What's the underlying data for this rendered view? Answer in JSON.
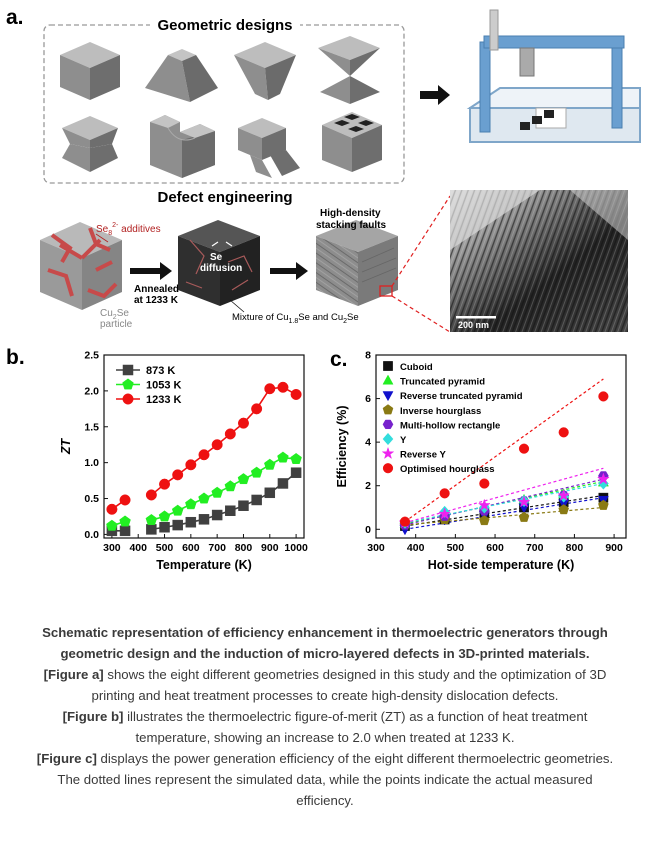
{
  "panel_a": {
    "label": "a.",
    "geometric_designs_title": "Geometric designs",
    "defect_title": "Defect engineering",
    "additives_label_main": "Se",
    "additives_label_sub": "8",
    "additives_label_sup": "2-",
    "additives_label_tail": " additives",
    "particle_label_main": "Cu",
    "particle_label_sub": "2",
    "particle_label_tail": "Se",
    "particle_label_line2": "particle",
    "annealed_line1": "Annealed",
    "annealed_line2": "at 1233 K",
    "se_diffusion_line1": "Se",
    "se_diffusion_line2": "diffusion",
    "stacking_line1": "High-density",
    "stacking_line2": "stacking faults",
    "mixture_main": "Mixture of Cu",
    "mixture_sub": "1.8",
    "mixture_tail": "Se and Cu",
    "mixture_sub2": "2",
    "mixture_tail2": "Se",
    "scale_bar": "200 nm"
  },
  "panel_b_label": "b.",
  "panel_c_label": "c.",
  "chart_data": [
    {
      "type": "line",
      "xlabel": "Temperature (K)",
      "ylabel": "ZT",
      "xlim": [
        270,
        1030
      ],
      "ylim": [
        -0.05,
        2.5
      ],
      "xticks": [
        300,
        400,
        500,
        600,
        700,
        800,
        900,
        1000
      ],
      "yticks": [
        0.0,
        0.5,
        1.0,
        1.5,
        2.0,
        2.5
      ],
      "legend_position": "top-left",
      "series": [
        {
          "name": "873 K",
          "color": "#404040",
          "marker": "square",
          "x": [
            300,
            350,
            450,
            500,
            550,
            600,
            650,
            700,
            750,
            800,
            850,
            900,
            950,
            1000
          ],
          "y": [
            0.05,
            0.05,
            0.07,
            0.1,
            0.13,
            0.17,
            0.21,
            0.27,
            0.33,
            0.4,
            0.48,
            0.58,
            0.71,
            0.86
          ]
        },
        {
          "name": "1053 K",
          "color": "#22ee22",
          "marker": "pentagon",
          "x": [
            300,
            350,
            450,
            500,
            550,
            600,
            650,
            700,
            750,
            800,
            850,
            900,
            950,
            1000
          ],
          "y": [
            0.12,
            0.18,
            0.2,
            0.25,
            0.33,
            0.42,
            0.5,
            0.58,
            0.67,
            0.77,
            0.86,
            0.97,
            1.07,
            1.05
          ]
        },
        {
          "name": "1233 K",
          "color": "#ee1111",
          "marker": "circle",
          "x": [
            300,
            350,
            450,
            500,
            550,
            600,
            650,
            700,
            750,
            800,
            850,
            900,
            950,
            1000
          ],
          "y": [
            0.35,
            0.48,
            0.55,
            0.7,
            0.83,
            0.97,
            1.11,
            1.25,
            1.4,
            1.55,
            1.75,
            2.03,
            2.05,
            1.95
          ]
        }
      ]
    },
    {
      "type": "scatter",
      "xlabel": "Hot-side temperature (K)",
      "ylabel": "Efficiency (%)",
      "xlim": [
        300,
        930
      ],
      "ylim": [
        -0.4,
        8
      ],
      "xticks": [
        300,
        400,
        500,
        600,
        700,
        800,
        900
      ],
      "yticks": [
        0,
        2,
        4,
        6,
        8
      ],
      "legend_position": "top-left",
      "x": [
        373,
        473,
        573,
        673,
        773,
        873
      ],
      "series": [
        {
          "name": "Cuboid",
          "color": "#111111",
          "marker": "square",
          "y": [
            0.15,
            0.45,
            0.75,
            1.0,
            1.25,
            1.45
          ],
          "sim_end": 1.55
        },
        {
          "name": "Truncated pyramid",
          "color": "#22ee22",
          "marker": "triangle-up",
          "y": [
            0.25,
            0.7,
            1.0,
            1.35,
            1.6,
            2.15
          ],
          "sim_end": 2.2
        },
        {
          "name": "Reverse truncated pyramid",
          "color": "#1111cc",
          "marker": "triangle-down",
          "y": [
            0.0,
            0.45,
            0.65,
            1.0,
            1.2,
            1.35
          ],
          "sim_end": 1.45
        },
        {
          "name": "Inverse hourglass",
          "color": "#8a7a14",
          "marker": "pentagon",
          "y": [
            0.2,
            0.45,
            0.4,
            0.55,
            0.9,
            1.1
          ],
          "sim_end": 1.0
        },
        {
          "name": "Multi-hollow rectangle",
          "color": "#7722cc",
          "marker": "hexagon",
          "y": [
            0.2,
            0.6,
            0.85,
            1.3,
            1.55,
            2.45
          ],
          "sim_end": 2.3
        },
        {
          "name": "Y",
          "color": "#33dddd",
          "marker": "diamond",
          "y": [
            0.3,
            0.8,
            1.0,
            1.3,
            1.5,
            2.1
          ],
          "sim_end": 2.1
        },
        {
          "name": "Reverse Y",
          "color": "#ee22ee",
          "marker": "star",
          "y": [
            0.3,
            0.7,
            1.1,
            1.25,
            1.55,
            2.3
          ],
          "sim_end": 2.8
        },
        {
          "name": "Optimised hourglass",
          "color": "#ee1111",
          "marker": "circle",
          "y": [
            0.35,
            1.65,
            2.1,
            3.7,
            4.45,
            6.1
          ],
          "sim_end": 6.9
        }
      ]
    }
  ],
  "caption": {
    "lead_1": "Schematic representation of efficiency enhancement in thermoelectric generators through",
    "lead_2": "geometric design and the induction of micro-layered defects in 3D-printed materials.",
    "a_tag": "[Figure a]",
    "a_1": " shows the eight different geometries designed in this study and the optimization of 3D",
    "a_2": "printing and heat treatment processes to create high-density dislocation defects.",
    "b_tag": "[Figure b]",
    "b_1": " illustrates the thermoelectric figure-of-merit (ZT) as a function of heat treatment",
    "b_2": "temperature, showing an increase to 2.0 when treated at 1233 K.",
    "c_tag": "[Figure c]",
    "c_1": " displays the power generation efficiency of the eight different thermoelectric geometries.",
    "c_2": "The dotted lines represent the simulated data, while the points indicate the actual measured",
    "c_3": "efficiency."
  }
}
